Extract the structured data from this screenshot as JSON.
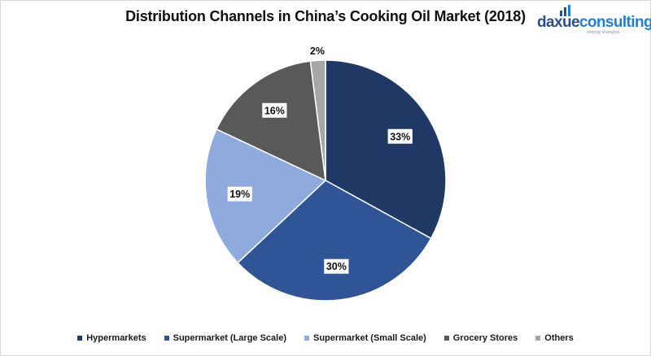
{
  "title": "Distribution Channels in China’s Cooking Oil Market (2018)",
  "logo": {
    "name_part1": "daxue",
    "name_part2": "consulting",
    "tagline": "beijing shanghai"
  },
  "chart_data": {
    "type": "pie",
    "title": "Distribution Channels in China’s Cooking Oil Market (2018)",
    "categories": [
      "Hypermarkets",
      "Supermarket (Large Scale)",
      "Supermarket (Small Scale)",
      "Grocery Stores",
      "Others"
    ],
    "values": [
      33,
      30,
      19,
      16,
      2
    ],
    "labels": [
      "33%",
      "30%",
      "19%",
      "16%",
      "2%"
    ],
    "unit": "%",
    "colors": [
      "#203864",
      "#2f5597",
      "#8faadc",
      "#595959",
      "#a6a6a6"
    ],
    "legend_position": "bottom",
    "start": "12 o'clock, clockwise"
  }
}
